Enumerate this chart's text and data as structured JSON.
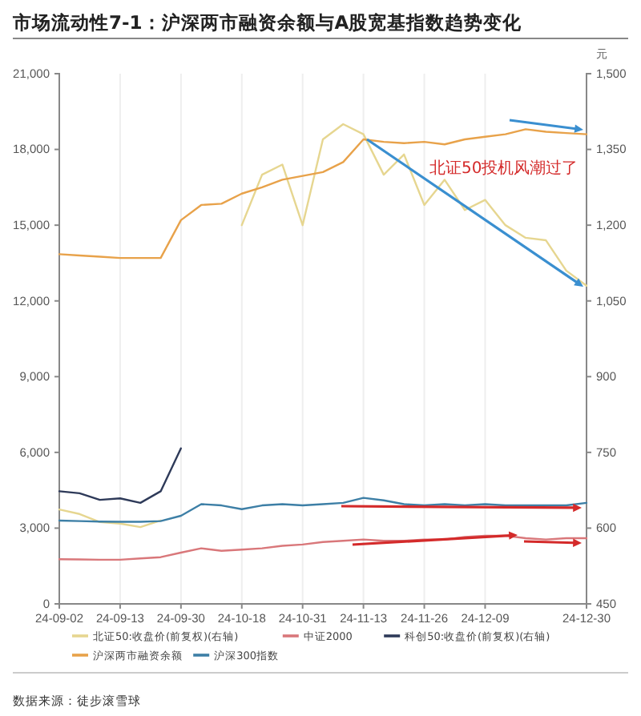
{
  "chart_data": {
    "type": "line",
    "title": "市场流动性7-1：沪深两市融资余额与A股宽基指数趋势变化",
    "y2label": "元",
    "categories": [
      "24-09-02",
      null,
      null,
      "24-09-13",
      null,
      null,
      "24-09-30",
      null,
      null,
      "24-10-18",
      null,
      null,
      "24-10-31",
      null,
      null,
      "24-11-13",
      null,
      null,
      "24-11-26",
      null,
      null,
      "24-12-09",
      null,
      null,
      null,
      null,
      "24-12-30"
    ],
    "series": [
      {
        "name": "北证50:收盘价(前复权)(右轴)",
        "color": "#e6d690",
        "axis": "y2",
        "values": [
          637,
          628,
          612,
          609,
          602,
          615,
          null,
          null,
          null,
          1200,
          1300,
          1320,
          1200,
          1370,
          1400,
          1380,
          1300,
          1340,
          1240,
          1290,
          1230,
          1250,
          1200,
          1175,
          1170,
          1110,
          1080
        ]
      },
      {
        "name": "中证2000",
        "color": "#d9777a",
        "values": [
          1770,
          1760,
          1750,
          1750,
          1800,
          1850,
          2030,
          2200,
          2100,
          2150,
          2200,
          2300,
          2350,
          2450,
          2500,
          2550,
          2500,
          2500,
          2550,
          2550,
          2650,
          2700,
          2700,
          2600,
          2550,
          2600,
          2600
        ]
      },
      {
        "name": "科创50:收盘价(前复权)(右轴)",
        "color": "#2e3a59",
        "axis": "y2",
        "values": [
          673,
          669,
          656,
          659,
          650,
          673,
          758,
          null,
          null,
          null,
          null,
          null,
          null,
          null,
          null,
          null,
          null,
          null,
          null,
          null,
          null,
          null,
          null,
          null,
          null,
          null,
          null
        ]
      },
      {
        "name": "沪深两市融资余额",
        "color": "#e8a24a",
        "values": [
          13850,
          13800,
          13750,
          13700,
          13700,
          13700,
          15200,
          15800,
          15850,
          16250,
          16500,
          16800,
          16950,
          17100,
          17500,
          18400,
          18300,
          18250,
          18300,
          18200,
          18400,
          18500,
          18600,
          18800,
          18700,
          18650,
          18600
        ]
      },
      {
        "name": "沪深300指数",
        "color": "#3d7fa6",
        "values": [
          3300,
          3280,
          3260,
          3250,
          3250,
          3280,
          3490,
          3950,
          3900,
          3750,
          3900,
          3950,
          3900,
          3950,
          4000,
          4200,
          4100,
          3950,
          3900,
          3950,
          3900,
          3950,
          3900,
          3900,
          3900,
          3900,
          4000
        ]
      }
    ],
    "ylim": [
      0,
      21000
    ],
    "yticks": [
      {
        "value": 0,
        "label": "0"
      },
      {
        "value": 3000,
        "label": "3,000"
      },
      {
        "value": 6000,
        "label": "6,000"
      },
      {
        "value": 9000,
        "label": "9,000"
      },
      {
        "value": 12000,
        "label": "12,000"
      },
      {
        "value": 15000,
        "label": "15,000"
      },
      {
        "value": 18000,
        "label": "18,000"
      },
      {
        "value": 21000,
        "label": "21,000"
      }
    ],
    "y2lim": [
      450,
      1500
    ],
    "y2ticks": [
      450,
      600,
      750,
      900,
      {
        "value": 1050,
        "label": "1,050"
      },
      {
        "value": 1200,
        "label": "1,200"
      },
      {
        "value": 1350,
        "label": "1,350"
      },
      {
        "value": 1500,
        "label": "1,500"
      }
    ],
    "grid": "x",
    "legend": "bottom",
    "marker": "none",
    "line_style": "solid",
    "annotations": [
      "北证50投机风潮过了",
      "数据来源：徒步滚雪球"
    ]
  }
}
